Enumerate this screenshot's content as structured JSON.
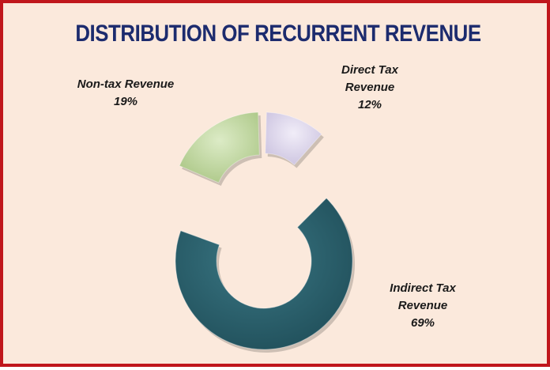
{
  "chart_data": {
    "type": "pie",
    "title": "DISTRIBUTION OF RECURRENT REVENUE",
    "slices": [
      {
        "label_lines": [
          "Direct Tax",
          "Revenue"
        ],
        "value": 12,
        "value_label": "12%",
        "color": "#ddd6ee"
      },
      {
        "label_lines": [
          "Indirect Tax",
          "Revenue"
        ],
        "value": 69,
        "value_label": "69%",
        "color": "#2f6572"
      },
      {
        "label_lines": [
          "Non-tax Revenue"
        ],
        "value": 19,
        "value_label": "19%",
        "color": "#c7dca7"
      }
    ]
  }
}
